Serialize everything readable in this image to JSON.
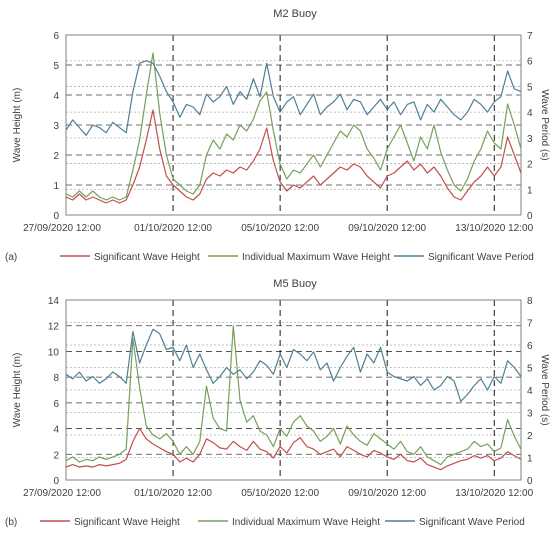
{
  "figure": {
    "charts": [
      {
        "panel_label": "(a)",
        "title": "M2 Buoy",
        "left_axis": {
          "label": "Wave Height (m)",
          "min": 0,
          "max": 6,
          "step": 1
        },
        "right_axis": {
          "label": "Wave Period (s)",
          "min": 0,
          "max": 7,
          "step": 1
        },
        "x_tick_labels": [
          "27/09/2020 12:00",
          "01/10/2020 12:00",
          "05/10/2020 12:00",
          "09/10/2020 12:00",
          "13/10/2020 12:00"
        ],
        "legend": [
          "Significant Wave Height",
          "Individual Maximum Wave Height",
          "Significant Wave Period"
        ]
      },
      {
        "panel_label": "(b)",
        "title": "M5 Buoy",
        "left_axis": {
          "label": "Wave Height (m)",
          "min": 0,
          "max": 14,
          "step": 2
        },
        "right_axis": {
          "label": "Wave Period (s)",
          "min": 0,
          "max": 8,
          "step": 1
        },
        "x_tick_labels": [
          "27/09/2020 12:00",
          "01/10/2020 12:00",
          "05/10/2020 12:00",
          "09/10/2020 12:00",
          "13/10/2020 12:00"
        ],
        "legend": [
          "Significant Wave Height",
          "Individual Maximum Wave Height",
          "Significant Wave Period"
        ]
      }
    ]
  },
  "chart_data": [
    {
      "type": "line",
      "title": "M2 Buoy",
      "xlabel": "",
      "ylabel": "Wave Height (m)",
      "y2label": "Wave Period (s)",
      "ylim": [
        0,
        6
      ],
      "y2lim": [
        0,
        7
      ],
      "x_ticks": [
        "27/09/2020 12:00",
        "01/10/2020 12:00",
        "05/10/2020 12:00",
        "09/10/2020 12:00",
        "13/10/2020 12:00"
      ],
      "x_start_date": "2020-09-27",
      "x_end_date": "2020-10-14",
      "x_day_offsets": [
        0,
        0.25,
        0.5,
        0.75,
        1,
        1.25,
        1.5,
        1.75,
        2,
        2.25,
        2.5,
        2.75,
        3,
        3.25,
        3.5,
        3.75,
        4,
        4.25,
        4.5,
        4.75,
        5,
        5.25,
        5.5,
        5.75,
        6,
        6.25,
        6.5,
        6.75,
        7,
        7.25,
        7.5,
        7.75,
        8,
        8.25,
        8.5,
        8.75,
        9,
        9.25,
        9.5,
        9.75,
        10,
        10.25,
        10.5,
        10.75,
        11,
        11.25,
        11.5,
        11.75,
        12,
        12.25,
        12.5,
        12.75,
        13,
        13.25,
        13.5,
        13.75,
        14,
        14.25,
        14.5,
        14.75,
        15,
        15.25,
        15.5,
        15.75,
        16,
        16.25,
        16.5,
        16.75,
        17
      ],
      "gridlines": "dashed",
      "legend_position": "bottom",
      "colors": {
        "significant_wave_height": "#c0504d",
        "individual_maximum_wave_height": "#77a05a",
        "significant_wave_period": "#4f7f95"
      },
      "series": [
        {
          "name": "Significant Wave Height",
          "axis": "left",
          "values": [
            0.6,
            0.5,
            0.7,
            0.5,
            0.6,
            0.5,
            0.4,
            0.5,
            0.4,
            0.5,
            1.0,
            1.6,
            2.5,
            3.5,
            2.2,
            1.3,
            1.0,
            0.8,
            0.6,
            0.5,
            0.7,
            1.2,
            1.4,
            1.3,
            1.5,
            1.4,
            1.6,
            1.5,
            1.8,
            2.2,
            2.9,
            1.8,
            1.1,
            0.8,
            1.0,
            0.9,
            1.1,
            1.3,
            1.0,
            1.2,
            1.4,
            1.6,
            1.5,
            1.7,
            1.6,
            1.3,
            1.1,
            0.9,
            1.3,
            1.4,
            1.6,
            1.8,
            1.5,
            1.7,
            1.4,
            1.6,
            1.3,
            0.9,
            0.6,
            0.5,
            0.8,
            1.1,
            1.3,
            1.6,
            1.3,
            1.6,
            2.6,
            2.0,
            1.4
          ]
        },
        {
          "name": "Individual Maximum Wave Height",
          "axis": "left",
          "values": [
            0.7,
            0.6,
            0.8,
            0.6,
            0.8,
            0.6,
            0.5,
            0.6,
            0.5,
            0.6,
            1.5,
            2.5,
            4.0,
            5.4,
            3.4,
            2.0,
            1.2,
            1.0,
            0.8,
            0.7,
            1.0,
            2.0,
            2.5,
            2.2,
            2.7,
            2.5,
            3.0,
            2.8,
            3.2,
            3.8,
            4.1,
            2.8,
            1.7,
            1.2,
            1.5,
            1.4,
            1.7,
            2.0,
            1.6,
            2.0,
            2.4,
            2.8,
            2.6,
            3.0,
            2.8,
            2.2,
            1.9,
            1.5,
            2.2,
            2.6,
            3.0,
            2.4,
            1.8,
            2.6,
            2.2,
            3.0,
            2.1,
            1.5,
            1.0,
            0.8,
            1.2,
            1.8,
            2.2,
            2.8,
            2.4,
            2.2,
            3.7,
            3.0,
            2.2
          ]
        },
        {
          "name": "Significant Wave Period",
          "axis": "right",
          "values": [
            3.3,
            3.7,
            3.4,
            3.1,
            3.5,
            3.4,
            3.2,
            3.6,
            3.4,
            3.2,
            4.8,
            5.9,
            6.0,
            5.9,
            5.4,
            4.8,
            4.4,
            3.8,
            4.3,
            4.2,
            3.9,
            4.7,
            4.4,
            4.6,
            5.0,
            4.3,
            4.8,
            4.5,
            5.3,
            4.6,
            5.9,
            4.6,
            4.0,
            4.4,
            4.6,
            3.9,
            4.3,
            4.7,
            3.9,
            4.2,
            4.4,
            4.7,
            4.1,
            4.5,
            4.4,
            3.9,
            4.2,
            4.5,
            4.1,
            4.4,
            3.9,
            4.3,
            4.4,
            3.7,
            4.3,
            4.0,
            4.5,
            4.2,
            3.9,
            3.7,
            4.0,
            4.5,
            4.3,
            4.0,
            4.4,
            4.6,
            5.6,
            4.9,
            4.8
          ]
        }
      ]
    },
    {
      "type": "line",
      "title": "M5 Buoy",
      "xlabel": "",
      "ylabel": "Wave Height (m)",
      "y2label": "Wave Period (s)",
      "ylim": [
        0,
        14
      ],
      "y2lim": [
        0,
        8
      ],
      "x_ticks": [
        "27/09/2020 12:00",
        "01/10/2020 12:00",
        "05/10/2020 12:00",
        "09/10/2020 12:00",
        "13/10/2020 12:00"
      ],
      "x_start_date": "2020-09-27",
      "x_end_date": "2020-10-14",
      "x_day_offsets": [
        0,
        0.25,
        0.5,
        0.75,
        1,
        1.25,
        1.5,
        1.75,
        2,
        2.25,
        2.5,
        2.75,
        3,
        3.25,
        3.5,
        3.75,
        4,
        4.25,
        4.5,
        4.75,
        5,
        5.25,
        5.5,
        5.75,
        6,
        6.25,
        6.5,
        6.75,
        7,
        7.25,
        7.5,
        7.75,
        8,
        8.25,
        8.5,
        8.75,
        9,
        9.25,
        9.5,
        9.75,
        10,
        10.25,
        10.5,
        10.75,
        11,
        11.25,
        11.5,
        11.75,
        12,
        12.25,
        12.5,
        12.75,
        13,
        13.25,
        13.5,
        13.75,
        14,
        14.25,
        14.5,
        14.75,
        15,
        15.25,
        15.5,
        15.75,
        16,
        16.25,
        16.5,
        16.75,
        17
      ],
      "gridlines": "dashed",
      "legend_position": "bottom",
      "colors": {
        "significant_wave_height": "#c0504d",
        "individual_maximum_wave_height": "#77a05a",
        "significant_wave_period": "#4f7f95"
      },
      "series": [
        {
          "name": "Significant Wave Height",
          "axis": "left",
          "values": [
            1.0,
            1.2,
            1.0,
            1.1,
            1.0,
            1.2,
            1.1,
            1.2,
            1.3,
            1.6,
            3.0,
            4.0,
            3.2,
            2.8,
            2.5,
            2.2,
            2.0,
            1.4,
            1.7,
            1.4,
            2.0,
            3.2,
            2.9,
            2.5,
            2.4,
            3.0,
            2.6,
            2.3,
            3.0,
            2.4,
            2.2,
            1.7,
            2.6,
            2.1,
            2.9,
            3.3,
            2.6,
            2.4,
            2.0,
            2.2,
            2.4,
            1.8,
            2.6,
            2.3,
            2.0,
            1.8,
            2.3,
            2.1,
            1.8,
            1.6,
            2.0,
            1.5,
            1.4,
            1.7,
            1.2,
            1.0,
            0.8,
            1.1,
            1.3,
            1.5,
            1.6,
            1.9,
            1.7,
            1.9,
            1.5,
            1.7,
            2.2,
            1.9,
            1.6
          ]
        },
        {
          "name": "Individual Maximum Wave Height",
          "axis": "left",
          "values": [
            1.5,
            1.8,
            1.4,
            1.6,
            1.5,
            1.8,
            1.6,
            1.8,
            2.0,
            2.4,
            11.0,
            7.2,
            4.2,
            3.5,
            3.2,
            3.6,
            3.0,
            2.0,
            2.6,
            2.0,
            3.0,
            7.3,
            4.8,
            4.0,
            3.8,
            12.0,
            6.2,
            4.5,
            5.0,
            3.8,
            3.5,
            2.6,
            4.0,
            3.4,
            4.5,
            5.0,
            4.2,
            3.8,
            3.0,
            3.4,
            4.0,
            2.8,
            4.2,
            3.5,
            3.0,
            2.7,
            3.6,
            3.2,
            2.8,
            2.4,
            3.0,
            2.2,
            2.0,
            2.6,
            1.8,
            1.5,
            1.2,
            1.8,
            2.0,
            2.2,
            2.4,
            3.0,
            2.6,
            2.8,
            2.2,
            2.5,
            4.7,
            3.4,
            2.4
          ]
        },
        {
          "name": "Significant Wave Period",
          "axis": "right",
          "values": [
            4.7,
            4.5,
            4.8,
            4.4,
            4.6,
            4.3,
            4.5,
            4.8,
            4.6,
            4.3,
            6.6,
            5.2,
            6.0,
            6.7,
            6.5,
            5.8,
            5.9,
            5.3,
            6.0,
            5.0,
            5.6,
            4.9,
            4.3,
            4.6,
            5.0,
            4.7,
            4.9,
            4.5,
            4.8,
            5.3,
            5.1,
            4.7,
            5.6,
            5.0,
            5.8,
            5.6,
            5.3,
            5.7,
            4.9,
            5.2,
            4.4,
            5.0,
            5.5,
            5.9,
            4.8,
            5.6,
            5.2,
            5.9,
            4.8,
            4.6,
            4.5,
            4.4,
            4.6,
            4.2,
            4.5,
            4.0,
            4.2,
            4.6,
            4.4,
            3.5,
            3.8,
            4.2,
            4.5,
            4.0,
            4.6,
            4.3,
            5.3,
            5.0,
            4.6
          ]
        }
      ]
    }
  ]
}
